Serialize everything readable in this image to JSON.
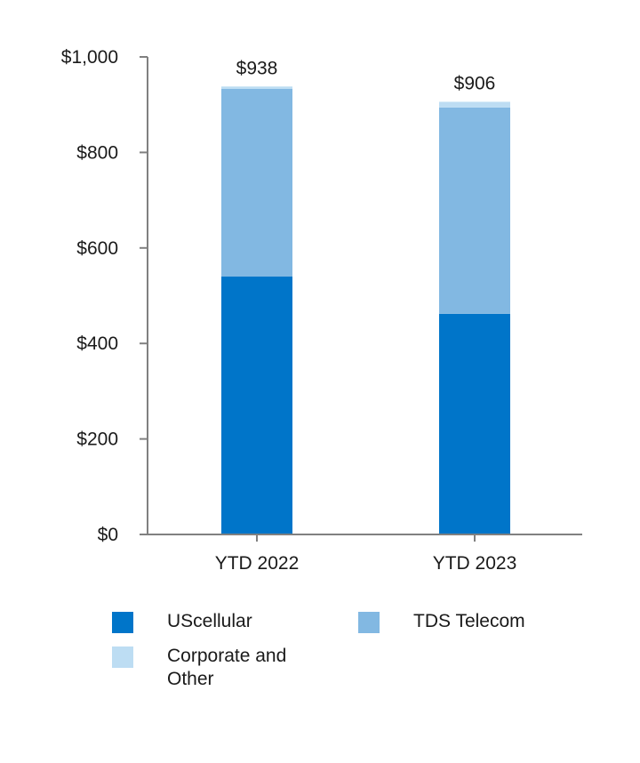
{
  "chart_data": {
    "type": "bar",
    "stacked": true,
    "categories": [
      "YTD 2022",
      "YTD 2023"
    ],
    "series": [
      {
        "name": "UScellular",
        "color": "#0075c9",
        "values": [
          540,
          462
        ]
      },
      {
        "name": "TDS Telecom",
        "color": "#82b8e2",
        "values": [
          393,
          432
        ]
      },
      {
        "name": "Corporate and Other",
        "color": "#bdddf3",
        "values": [
          5,
          12
        ]
      }
    ],
    "totals": [
      "$938",
      "$906"
    ],
    "total_values": [
      938,
      906
    ],
    "ylim": [
      0,
      1000
    ],
    "yticks": [
      {
        "value": 0,
        "label": "$0"
      },
      {
        "value": 200,
        "label": "$200"
      },
      {
        "value": 400,
        "label": "$400"
      },
      {
        "value": 600,
        "label": "$600"
      },
      {
        "value": 800,
        "label": "$800"
      },
      {
        "value": 1000,
        "label": "$1,000"
      }
    ],
    "grid": false,
    "legend": "bottom",
    "axis_color": "#808080"
  }
}
